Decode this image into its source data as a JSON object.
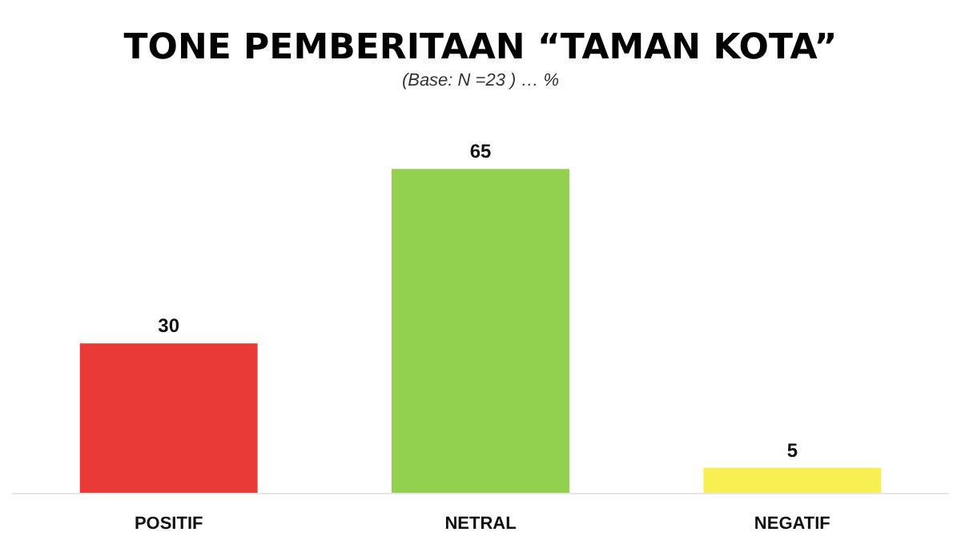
{
  "chart_data": {
    "type": "bar",
    "title": "TONE PEMBERITAAN “TAMAN KOTA”",
    "subtitle": "(Base: N =23 ) … %",
    "categories": [
      "POSITIF",
      "NETRAL",
      "NEGATIF"
    ],
    "values": [
      30,
      65,
      5
    ],
    "colors": [
      "#e93a35",
      "#92d050",
      "#f8ef52"
    ],
    "data_labels": true
  }
}
